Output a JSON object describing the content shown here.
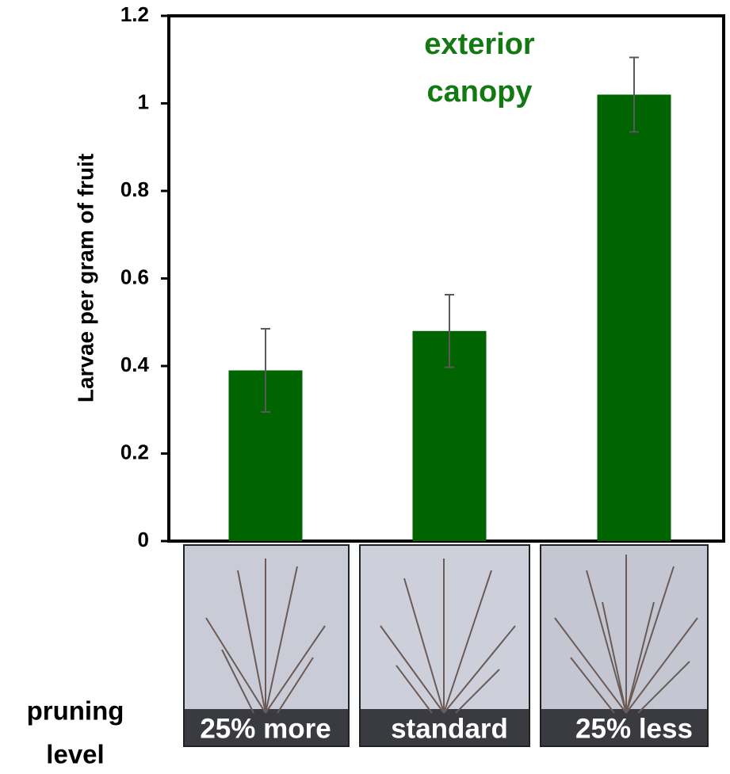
{
  "chart_data": {
    "type": "bar",
    "annotation": [
      "exterior",
      "canopy"
    ],
    "annotation_color": "#137a13",
    "y_label": "Larvae per gram of fruit",
    "x_label": [
      "pruning",
      "level"
    ],
    "categories": [
      "25% more",
      "standard",
      "25% less"
    ],
    "values": [
      0.39,
      0.48,
      1.02
    ],
    "errors": [
      0.095,
      0.083,
      0.085
    ],
    "color": "#006400",
    "error_color": "#595959",
    "ylim": [
      0,
      1.2
    ],
    "yticks": [
      0,
      0.2,
      0.4,
      0.6,
      0.8,
      1,
      1.2
    ]
  }
}
